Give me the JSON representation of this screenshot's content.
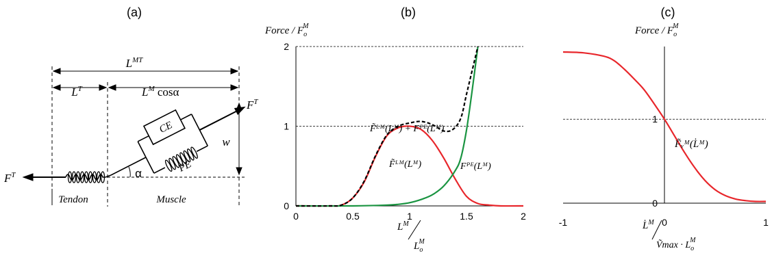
{
  "panel_labels": {
    "a": "(a)",
    "b": "(b)",
    "c": "(c)"
  },
  "panel_a": {
    "lmt": "L",
    "lmt_sup": "MT",
    "lt": "L",
    "lt_sup": "T",
    "lm_cos": "L",
    "lm_sup": "M",
    "lm_tail": " cosα",
    "ft_right": "F",
    "ft_right_sup": "T",
    "ft_left": "F",
    "ft_left_sup": "T",
    "ce": "CE",
    "pe": "PE",
    "alpha": "α",
    "w": "w",
    "tendon": "Tendon",
    "muscle": "Muscle"
  },
  "panel_b": {
    "y_title": "Force / F",
    "y_title_sub": "o",
    "y_title_sup": "M",
    "x_num": "L",
    "x_num_sup": "M",
    "x_den": "L",
    "x_den_sub": "o",
    "x_den_sup": "M",
    "label_sum": "F̃ᴸᴹ(Lᴹ) + Fᴾᴱ(Lᴹ)",
    "label_fl": "F̃ᴸᴹ(Lᴹ)",
    "label_fpe": "Fᴾᴱ(Lᴹ)"
  },
  "panel_c": {
    "y_title": "Force / F",
    "y_title_sub": "o",
    "y_title_sup": "M",
    "x_num": "L̇",
    "x_num_sup": "M",
    "x_den": "Ṽmax · L",
    "x_den_sub": "o",
    "x_den_sup": "M",
    "label_fv": "F̃ᵥᴹ(L̇ᴹ)"
  },
  "chart_data": [
    {
      "type": "line",
      "panel": "b",
      "xlim": [
        0,
        2
      ],
      "ylim": [
        0,
        2
      ],
      "x_ticks": [
        "0",
        "0.5",
        "1",
        "1.5",
        "2"
      ],
      "y_ticks": [
        "0",
        "1",
        "2"
      ],
      "reference_lines_y": [
        1,
        2
      ],
      "colors": {
        "fl": "#e8262b",
        "fpe": "#1a9441",
        "sum": "#000000"
      },
      "series": [
        {
          "name": "F̃ᴸᴹ(Lᴹ)",
          "color": "#e8262b",
          "x": [
            0,
            0.3,
            0.4,
            0.5,
            0.6,
            0.7,
            0.8,
            0.9,
            1.0,
            1.1,
            1.2,
            1.3,
            1.4,
            1.5,
            1.6,
            1.7,
            1.8,
            2.0
          ],
          "y": [
            0,
            0,
            0.01,
            0.1,
            0.3,
            0.62,
            0.88,
            0.98,
            1.0,
            0.96,
            0.82,
            0.6,
            0.34,
            0.12,
            0.03,
            0.01,
            0,
            0
          ]
        },
        {
          "name": "Fᴾᴱ(Lᴹ)",
          "color": "#1a9441",
          "x": [
            0,
            0.5,
            0.8,
            0.9,
            1.0,
            1.1,
            1.2,
            1.3,
            1.4,
            1.45,
            1.5,
            1.55,
            1.6
          ],
          "y": [
            0,
            0,
            0.01,
            0.02,
            0.04,
            0.08,
            0.14,
            0.25,
            0.44,
            0.6,
            0.95,
            1.45,
            2.0
          ]
        },
        {
          "name": "F̃ᴸᴹ(Lᴹ) + Fᴾᴱ(Lᴹ)",
          "color": "#000000",
          "dashed": true,
          "x": [
            0,
            0.3,
            0.4,
            0.5,
            0.6,
            0.7,
            0.8,
            0.9,
            1.0,
            1.1,
            1.2,
            1.3,
            1.38,
            1.45,
            1.5,
            1.55,
            1.6
          ],
          "y": [
            0,
            0,
            0.01,
            0.1,
            0.31,
            0.63,
            0.89,
            1.0,
            1.04,
            1.06,
            1.02,
            0.94,
            0.96,
            1.1,
            1.4,
            1.7,
            2.0
          ]
        }
      ]
    },
    {
      "type": "line",
      "panel": "c",
      "xlim": [
        -1,
        1
      ],
      "ylim": [
        0,
        1.8
      ],
      "x_ticks": [
        "-1",
        "0",
        "1"
      ],
      "y_ticks": [
        "0",
        "1"
      ],
      "reference_lines_y": [
        1
      ],
      "series": [
        {
          "name": "F̃ᵥᴹ(L̇ᴹ)",
          "color": "#e8262b",
          "x": [
            -1,
            -0.8,
            -0.6,
            -0.5,
            -0.4,
            -0.3,
            -0.2,
            -0.1,
            0,
            0.1,
            0.2,
            0.3,
            0.4,
            0.5,
            0.6,
            0.7,
            0.8,
            0.9,
            1.0
          ],
          "y": [
            1.8,
            1.79,
            1.75,
            1.7,
            1.6,
            1.48,
            1.35,
            1.18,
            1.0,
            0.8,
            0.6,
            0.42,
            0.27,
            0.16,
            0.09,
            0.05,
            0.03,
            0.02,
            0.02
          ]
        }
      ]
    }
  ]
}
